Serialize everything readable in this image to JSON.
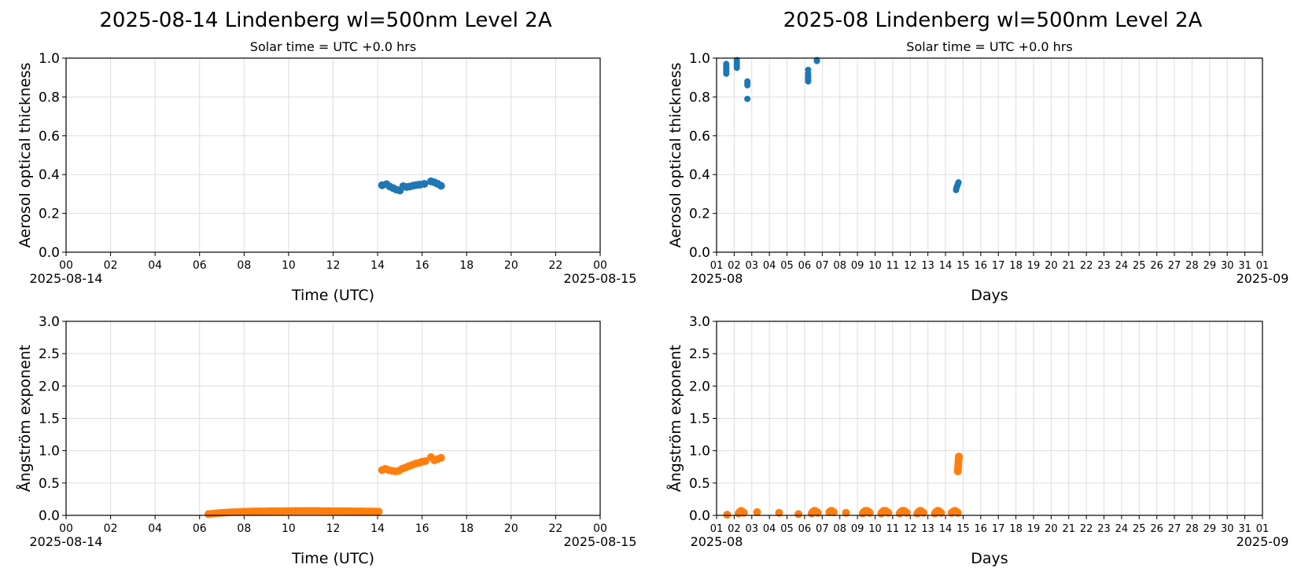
{
  "colors": {
    "aot": "#1f77b4",
    "angstrom": "#ff7f0e",
    "grid": "#dddddd",
    "axis": "#000000"
  },
  "figure": {
    "left_title": "2025-08-14  Lindenberg  wl=500nm  Level 2A",
    "right_title": "2025-08  Lindenberg  wl=500nm  Level 2A"
  },
  "chart_data": [
    {
      "type": "scatter",
      "subtitle": "Solar time = UTC +0.0 hrs",
      "xlabel": "Time (UTC)",
      "ylabel": "Aerosol optical thickness",
      "x_tick_labels": [
        "00",
        "02",
        "04",
        "06",
        "08",
        "10",
        "12",
        "14",
        "16",
        "18",
        "20",
        "22",
        "00"
      ],
      "x_start_label": "2025-08-14",
      "x_end_label": "2025-08-15",
      "xlim": [
        0,
        24
      ],
      "ylim": [
        0,
        1.0
      ],
      "y_ticks": [
        "0.0",
        "0.2",
        "0.4",
        "0.6",
        "0.8",
        "1.0"
      ],
      "grid": true,
      "series": [
        {
          "x": [
            14.2,
            14.4,
            14.55,
            14.7,
            14.85,
            15.0,
            15.15,
            15.3,
            15.45,
            15.6,
            15.75,
            15.9,
            16.1,
            16.4,
            16.55,
            16.7,
            16.85
          ],
          "y": [
            0.345,
            0.35,
            0.338,
            0.33,
            0.322,
            0.318,
            0.34,
            0.336,
            0.338,
            0.343,
            0.346,
            0.348,
            0.352,
            0.365,
            0.36,
            0.352,
            0.342
          ]
        }
      ]
    },
    {
      "type": "scatter",
      "subtitle": "Solar time = UTC +0.0 hrs",
      "xlabel": "Days",
      "ylabel": "Aerosol optical thickness",
      "x_tick_labels": [
        "01",
        "02",
        "03",
        "04",
        "05",
        "06",
        "07",
        "08",
        "09",
        "10",
        "11",
        "12",
        "13",
        "14",
        "15",
        "16",
        "17",
        "18",
        "19",
        "20",
        "21",
        "22",
        "23",
        "24",
        "25",
        "26",
        "27",
        "28",
        "29",
        "30",
        "31",
        "01"
      ],
      "x_start_label": "2025-08",
      "x_end_label": "2025-09",
      "xlim": [
        1,
        32
      ],
      "ylim": [
        0,
        1.0
      ],
      "y_ticks": [
        "0.0",
        "0.2",
        "0.4",
        "0.6",
        "0.8",
        "1.0"
      ],
      "grid": true,
      "series": [
        {
          "x": [
            1.55,
            1.55,
            1.55,
            1.55,
            1.55,
            1.55,
            2.15,
            2.15,
            2.15,
            2.15,
            2.15,
            2.75,
            2.75,
            2.75,
            2.75,
            6.2,
            6.2,
            6.2,
            6.2,
            6.2,
            6.2,
            6.7,
            6.7,
            14.6,
            14.62,
            14.64,
            14.66,
            14.68,
            14.7,
            14.72,
            14.74
          ],
          "y": [
            0.97,
            0.96,
            0.95,
            0.94,
            0.93,
            0.92,
            0.99,
            0.98,
            0.97,
            0.96,
            0.95,
            0.88,
            0.87,
            0.86,
            0.79,
            0.94,
            0.92,
            0.91,
            0.9,
            0.89,
            0.88,
            0.99,
            0.985,
            0.32,
            0.33,
            0.335,
            0.34,
            0.345,
            0.35,
            0.355,
            0.36
          ]
        }
      ]
    },
    {
      "type": "scatter",
      "xlabel": "Time (UTC)",
      "ylabel": "Ångström exponent",
      "x_tick_labels": [
        "00",
        "02",
        "04",
        "06",
        "08",
        "10",
        "12",
        "14",
        "16",
        "18",
        "20",
        "22",
        "00"
      ],
      "x_start_label": "2025-08-14",
      "x_end_label": "2025-08-15",
      "xlim": [
        0,
        24
      ],
      "ylim": [
        0,
        3.0
      ],
      "y_ticks": [
        "0.0",
        "0.5",
        "1.0",
        "1.5",
        "2.0",
        "2.5",
        "3.0"
      ],
      "grid": true,
      "series": [
        {
          "x": [
            6.4,
            6.55,
            6.7,
            6.85,
            7.0,
            7.15,
            7.3,
            7.45,
            7.6,
            7.75,
            7.9,
            8.05,
            8.2,
            8.35,
            8.5,
            8.65,
            8.8,
            8.95,
            9.1,
            9.25,
            9.4,
            9.55,
            9.7,
            9.85,
            10.0,
            10.15,
            10.3,
            10.45,
            10.6,
            10.75,
            10.9,
            11.05,
            11.2,
            11.35,
            11.5,
            11.65,
            11.8,
            11.95,
            12.1,
            12.25,
            12.4,
            12.55,
            12.7,
            12.85,
            13.0,
            13.15,
            13.3,
            13.45,
            13.6,
            13.75,
            13.9,
            14.05,
            14.2,
            14.35,
            14.5,
            14.65,
            14.8,
            14.95,
            15.1,
            15.25,
            15.4,
            15.55,
            15.7,
            15.85,
            16.0,
            16.15,
            16.4,
            16.55,
            16.7,
            16.85
          ],
          "y": [
            0.02,
            0.025,
            0.03,
            0.035,
            0.04,
            0.042,
            0.045,
            0.048,
            0.05,
            0.052,
            0.055,
            0.057,
            0.058,
            0.06,
            0.06,
            0.062,
            0.062,
            0.063,
            0.064,
            0.065,
            0.065,
            0.066,
            0.066,
            0.067,
            0.067,
            0.067,
            0.068,
            0.068,
            0.068,
            0.068,
            0.068,
            0.068,
            0.068,
            0.068,
            0.067,
            0.067,
            0.067,
            0.066,
            0.066,
            0.066,
            0.065,
            0.065,
            0.064,
            0.064,
            0.063,
            0.062,
            0.062,
            0.061,
            0.06,
            0.06,
            0.059,
            0.058,
            0.7,
            0.72,
            0.7,
            0.69,
            0.68,
            0.69,
            0.72,
            0.74,
            0.76,
            0.78,
            0.8,
            0.81,
            0.83,
            0.84,
            0.9,
            0.85,
            0.87,
            0.89
          ]
        }
      ]
    },
    {
      "type": "scatter",
      "xlabel": "Days",
      "ylabel": "Ångström exponent",
      "x_tick_labels": [
        "01",
        "02",
        "03",
        "04",
        "05",
        "06",
        "07",
        "08",
        "09",
        "10",
        "11",
        "12",
        "13",
        "14",
        "15",
        "16",
        "17",
        "18",
        "19",
        "20",
        "21",
        "22",
        "23",
        "24",
        "25",
        "26",
        "27",
        "28",
        "29",
        "30",
        "31",
        "01"
      ],
      "x_start_label": "2025-08",
      "x_end_label": "2025-09",
      "xlim": [
        1,
        32
      ],
      "ylim": [
        0,
        3.0
      ],
      "y_ticks": [
        "0.0",
        "0.5",
        "1.0",
        "1.5",
        "2.0",
        "2.5",
        "3.0"
      ],
      "grid": true,
      "series": [
        {
          "x": [
            1.6,
            2.25,
            2.3,
            2.35,
            2.4,
            2.45,
            2.5,
            2.55,
            3.3,
            4.55,
            5.65,
            6.4,
            6.45,
            6.5,
            6.55,
            6.6,
            6.65,
            6.7,
            6.75,
            7.4,
            7.45,
            7.5,
            7.55,
            7.6,
            7.65,
            8.35,
            9.3,
            9.35,
            9.4,
            9.45,
            9.5,
            9.55,
            9.6,
            9.65,
            9.7,
            10.35,
            10.4,
            10.45,
            10.5,
            10.55,
            10.6,
            10.65,
            10.7,
            10.75,
            11.4,
            11.45,
            11.5,
            11.55,
            11.6,
            11.65,
            11.7,
            11.75,
            11.8,
            12.4,
            12.45,
            12.5,
            12.55,
            12.6,
            12.65,
            12.7,
            12.75,
            13.4,
            13.45,
            13.5,
            13.55,
            13.6,
            13.65,
            13.7,
            13.75,
            14.35,
            14.4,
            14.45,
            14.5,
            14.55,
            14.6,
            14.65,
            14.7,
            14.7,
            14.71,
            14.72,
            14.73,
            14.74,
            14.75,
            14.76
          ],
          "y": [
            0.01,
            0.03,
            0.05,
            0.06,
            0.07,
            0.06,
            0.05,
            0.04,
            0.05,
            0.04,
            0.02,
            0.03,
            0.05,
            0.06,
            0.07,
            0.07,
            0.06,
            0.05,
            0.04,
            0.05,
            0.06,
            0.07,
            0.07,
            0.06,
            0.05,
            0.04,
            0.03,
            0.05,
            0.06,
            0.07,
            0.07,
            0.07,
            0.06,
            0.05,
            0.04,
            0.03,
            0.05,
            0.06,
            0.07,
            0.07,
            0.07,
            0.06,
            0.05,
            0.04,
            0.03,
            0.05,
            0.06,
            0.07,
            0.07,
            0.07,
            0.06,
            0.05,
            0.04,
            0.03,
            0.05,
            0.06,
            0.07,
            0.07,
            0.06,
            0.05,
            0.04,
            0.03,
            0.05,
            0.06,
            0.07,
            0.07,
            0.06,
            0.05,
            0.04,
            0.04,
            0.05,
            0.06,
            0.07,
            0.07,
            0.06,
            0.05,
            0.04,
            0.68,
            0.72,
            0.76,
            0.8,
            0.84,
            0.88,
            0.91
          ]
        }
      ]
    }
  ]
}
